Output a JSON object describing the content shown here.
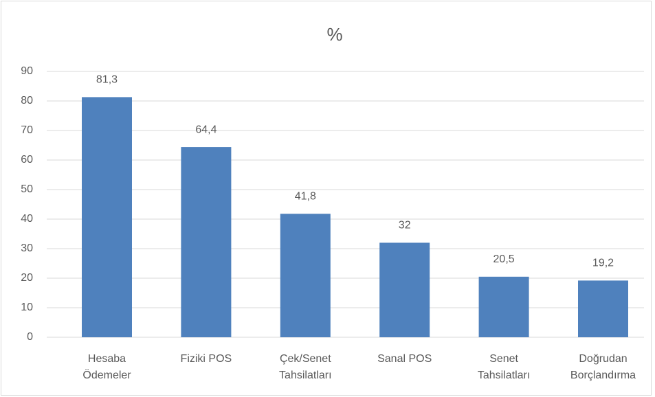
{
  "chart_data": {
    "type": "bar",
    "title": "%",
    "categories": [
      "Hesaba Ödemeler",
      "Fiziki POS",
      "Çek/Senet Tahsilatları",
      "Sanal POS",
      "Senet Tahsilatları",
      "Doğrudan Borçlandırma"
    ],
    "values": [
      81.3,
      64.4,
      41.8,
      32,
      20.5,
      19.2
    ],
    "value_labels": [
      "81,3",
      "64,4",
      "41,8",
      "32",
      "20,5",
      "19,2"
    ],
    "color": "#4f81bd",
    "ylim": [
      0,
      90
    ],
    "yticks": [
      0,
      10,
      20,
      30,
      40,
      50,
      60,
      70,
      80,
      90
    ],
    "grid": true
  }
}
